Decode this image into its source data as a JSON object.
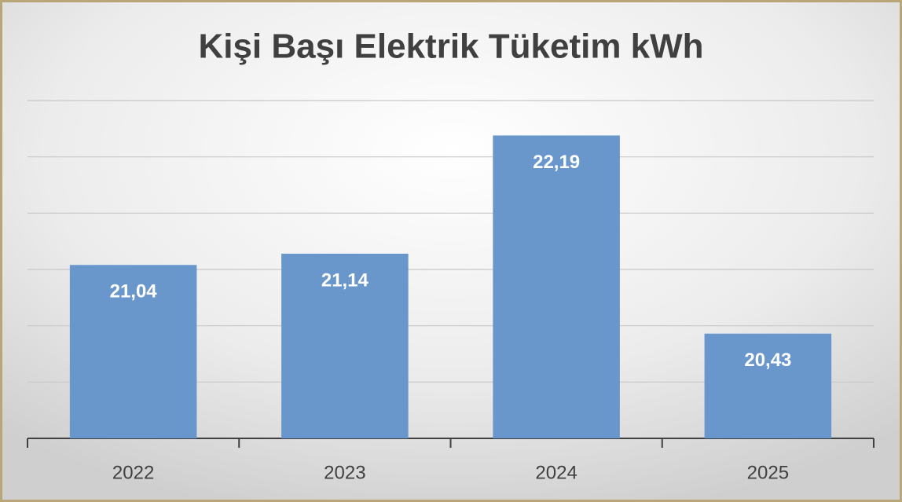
{
  "chart_data": {
    "type": "bar",
    "title": "Kişi Başı Elektrik Tüketim kWh",
    "categories": [
      "2022",
      "2023",
      "2024",
      "2025"
    ],
    "values": [
      21.04,
      21.14,
      22.19,
      20.43
    ],
    "value_labels": [
      "21,04",
      "21,14",
      "22,19",
      "20,43"
    ],
    "color": "#6a97cb",
    "ylim": [
      19.5,
      22.5
    ],
    "yticks": [
      19.5,
      20,
      20.5,
      21,
      21.5,
      22,
      22.5
    ],
    "grid": true
  }
}
